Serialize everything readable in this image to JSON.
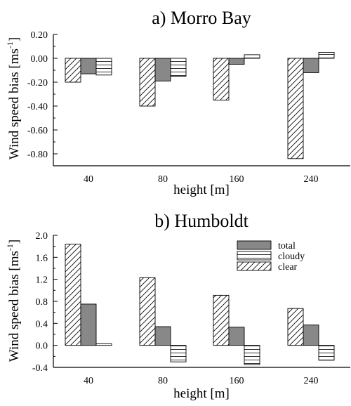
{
  "chart_data": [
    {
      "type": "bar",
      "title": "a) Morro Bay",
      "xlabel": "height [m]",
      "ylabel_main": "Wind speed bias [ms",
      "ylabel_sup": "-1",
      "ylabel_end": "]",
      "categories": [
        "40",
        "80",
        "160",
        "240"
      ],
      "ylim": [
        -0.9,
        0.2
      ],
      "yticks": [
        0.2,
        0.0,
        -0.2,
        -0.4,
        -0.6,
        -0.8
      ],
      "ytick_labels": [
        "0.20",
        "0.00",
        "-0.20",
        "-0.40",
        "-0.60",
        "-0.80"
      ],
      "legend": false,
      "series": [
        {
          "key": "clear",
          "pattern": "diagonal-hatch",
          "values": [
            -0.2,
            -0.4,
            -0.35,
            -0.84
          ]
        },
        {
          "key": "total",
          "pattern": "solid-gray",
          "values": [
            -0.13,
            -0.19,
            -0.05,
            -0.12
          ]
        },
        {
          "key": "cloudy",
          "pattern": "horizontal-hatch",
          "values": [
            -0.14,
            -0.15,
            0.03,
            0.05
          ]
        }
      ]
    },
    {
      "type": "bar",
      "title": "b) Humboldt",
      "xlabel": "height [m]",
      "ylabel_main": "Wind speed bias [ms",
      "ylabel_sup": "-1",
      "ylabel_end": "]",
      "categories": [
        "40",
        "80",
        "160",
        "240"
      ],
      "ylim": [
        -0.4,
        2.0
      ],
      "yticks": [
        2.0,
        1.6,
        1.2,
        0.8,
        0.4,
        0.0,
        -0.4
      ],
      "ytick_labels": [
        "2.0",
        "1.6",
        "1.2",
        "0.8",
        "0.4",
        "0.0",
        "-0.4"
      ],
      "legend": true,
      "legend_position": "top-right",
      "series": [
        {
          "key": "clear",
          "name": "clear",
          "pattern": "diagonal-hatch",
          "values": [
            1.84,
            1.23,
            0.91,
            0.67
          ]
        },
        {
          "key": "total",
          "name": "total",
          "pattern": "solid-gray",
          "values": [
            0.75,
            0.34,
            0.33,
            0.37
          ]
        },
        {
          "key": "cloudy",
          "name": "cloudy",
          "pattern": "horizontal-hatch",
          "values": [
            0.03,
            -0.3,
            -0.35,
            -0.27
          ]
        }
      ]
    }
  ],
  "colors": {
    "total_fill": "#888888",
    "hatch_stroke": "#000000",
    "background": "#ffffff"
  }
}
